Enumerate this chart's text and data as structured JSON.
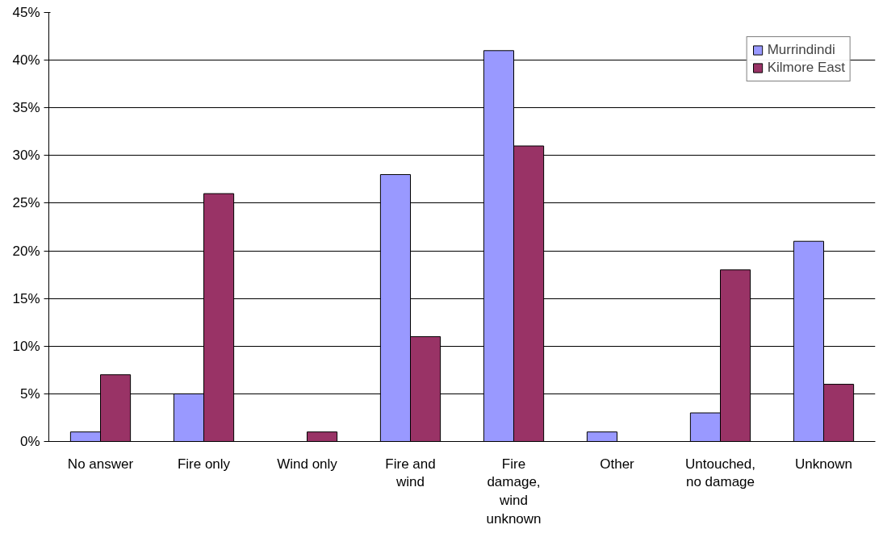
{
  "chart_data": {
    "type": "bar",
    "categories": [
      "No answer",
      "Fire only",
      "Wind only",
      "Fire and wind",
      "Fire damage, wind unknown",
      "Other",
      "Untouched, no damage",
      "Unknown"
    ],
    "series": [
      {
        "name": "Murrindindi",
        "color": "#9999ff",
        "values": [
          1,
          5,
          0,
          28,
          41,
          1,
          3,
          21
        ]
      },
      {
        "name": "Kilmore East",
        "color": "#993366",
        "values": [
          7,
          26,
          1,
          11,
          31,
          0,
          18,
          6
        ]
      }
    ],
    "ylim": [
      0,
      45
    ],
    "yticks": [
      {
        "value": 0,
        "label": "0%"
      },
      {
        "value": 5,
        "label": "5%"
      },
      {
        "value": 10,
        "label": "10%"
      },
      {
        "value": 15,
        "label": "15%"
      },
      {
        "value": 20,
        "label": "20%"
      },
      {
        "value": 25,
        "label": "25%"
      },
      {
        "value": 30,
        "label": "30%"
      },
      {
        "value": 35,
        "label": "35%"
      },
      {
        "value": 40,
        "label": "40%"
      },
      {
        "value": 45,
        "label": "45%"
      }
    ],
    "grid": "y",
    "legend": "top right"
  }
}
